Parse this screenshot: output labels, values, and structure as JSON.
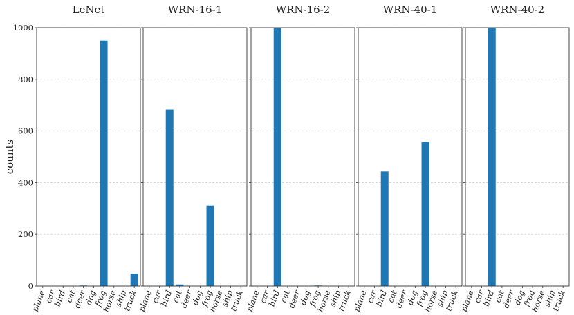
{
  "chart_data": {
    "type": "bar",
    "ylabel": "counts",
    "ylim": [
      0,
      1000
    ],
    "yticks": [
      0,
      200,
      400,
      600,
      800,
      1000
    ],
    "grid": "y",
    "bar_color": "#1f77b4",
    "categories": [
      "plane",
      "car",
      "bird",
      "cat",
      "deer",
      "dog",
      "frog",
      "horse",
      "ship",
      "truck"
    ],
    "panels": [
      {
        "title": "LeNet",
        "values": [
          0,
          0,
          0,
          0,
          2,
          0,
          950,
          0,
          0,
          48
        ]
      },
      {
        "title": "WRN-16-1",
        "values": [
          0,
          0,
          683,
          6,
          0,
          0,
          311,
          0,
          0,
          0
        ]
      },
      {
        "title": "WRN-16-2",
        "values": [
          0,
          0,
          998,
          0,
          0,
          0,
          2,
          0,
          0,
          0
        ]
      },
      {
        "title": "WRN-40-1",
        "values": [
          0,
          0,
          443,
          0,
          0,
          0,
          557,
          0,
          0,
          0
        ]
      },
      {
        "title": "WRN-40-2",
        "values": [
          0,
          0,
          1000,
          0,
          0,
          0,
          0,
          0,
          0,
          0
        ]
      }
    ]
  }
}
